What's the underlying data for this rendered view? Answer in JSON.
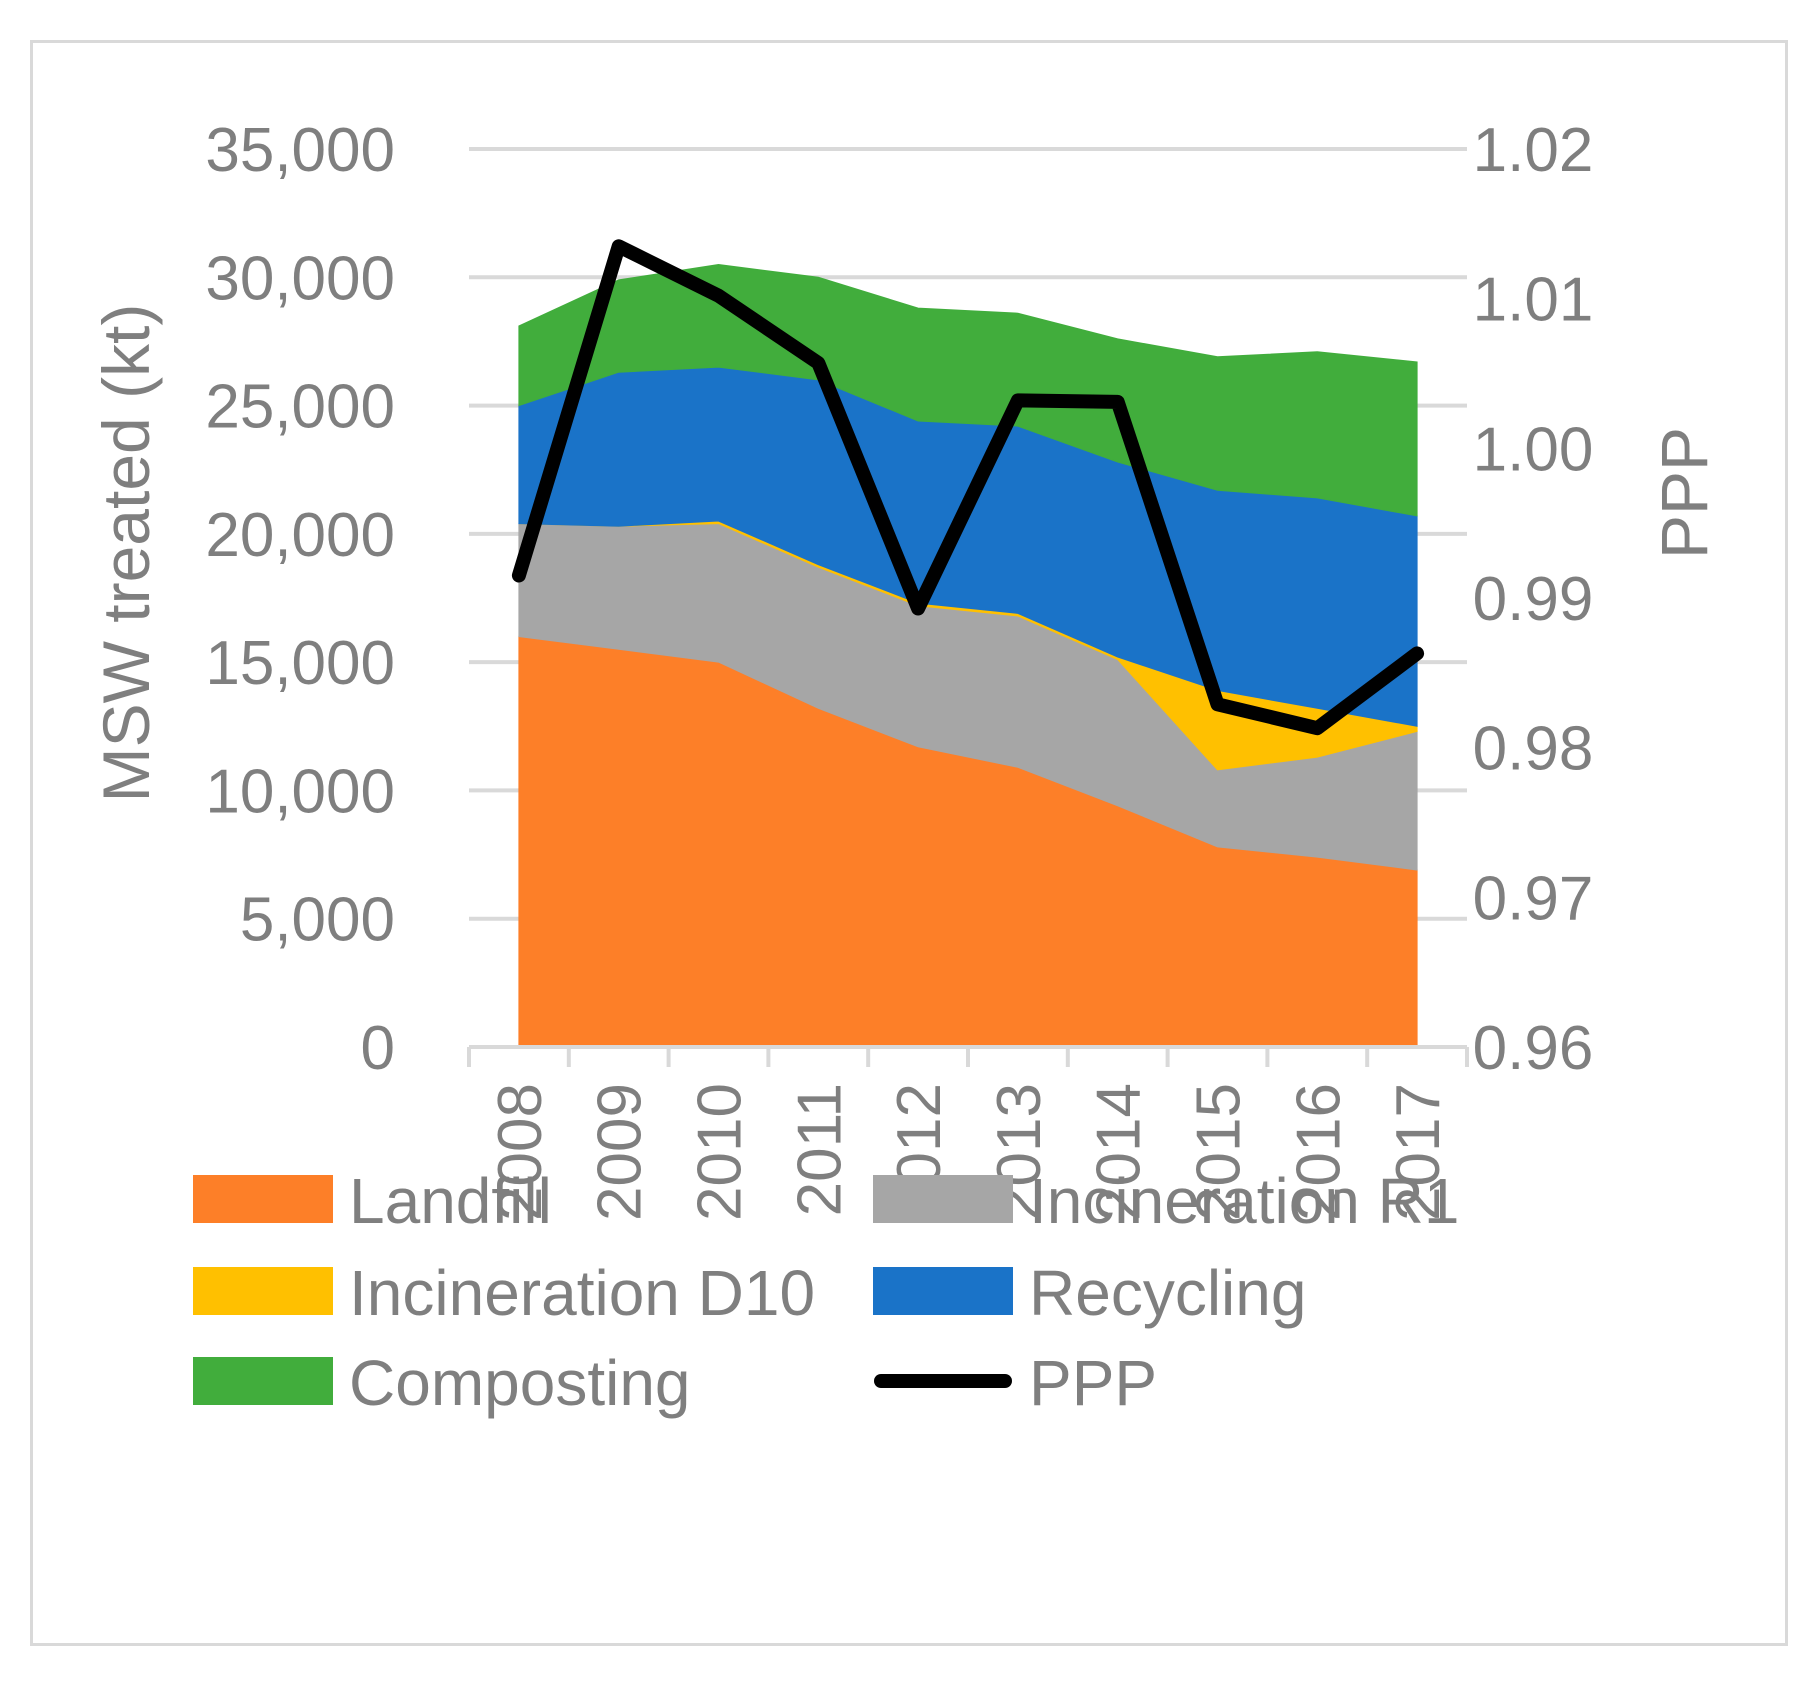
{
  "chart_data": {
    "type": "area",
    "title": "",
    "xlabel": "",
    "ylabel": "MSW treated (kt)",
    "y2label": "PPP",
    "categories": [
      "2008",
      "2009",
      "2010",
      "2011",
      "2012",
      "2013",
      "2014",
      "2015",
      "2016",
      "2017"
    ],
    "ylim": [
      0,
      35000
    ],
    "yticks": [
      "0",
      "5,000",
      "10,000",
      "15,000",
      "20,000",
      "25,000",
      "30,000",
      "35,000"
    ],
    "y2lim": [
      0.96,
      1.02
    ],
    "y2ticks": [
      "0.96",
      "0.97",
      "0.98",
      "0.99",
      "1.00",
      "1.01",
      "1.02"
    ],
    "stacked": true,
    "series": [
      {
        "name": "Landfill",
        "color": "#fd7f28",
        "values": [
          16000,
          15500,
          15000,
          13200,
          11700,
          10900,
          9400,
          7800,
          7400,
          6900
        ]
      },
      {
        "name": "Incineration R1",
        "color": "#a6a6a6",
        "values": [
          4400,
          4800,
          5400,
          5500,
          5500,
          5900,
          5700,
          3000,
          3900,
          5400
        ]
      },
      {
        "name": "Incineration D10",
        "color": "#ffc000",
        "values": [
          0,
          0,
          100,
          100,
          100,
          100,
          100,
          3100,
          1900,
          200
        ]
      },
      {
        "name": "Recycling",
        "color": "#1a73c8",
        "values": [
          4600,
          6000,
          6000,
          7200,
          7100,
          7300,
          7600,
          7800,
          8200,
          8200
        ]
      },
      {
        "name": "Composting",
        "color": "#41ad3c",
        "values": [
          3100,
          3600,
          4000,
          4000,
          4400,
          4400,
          4800,
          5200,
          5700,
          6000
        ]
      }
    ],
    "line_series": {
      "name": "PPP",
      "color": "#000000",
      "axis": "right",
      "values": [
        0.9915,
        1.0135,
        1.0102,
        1.0057,
        0.9893,
        1.0032,
        1.0031,
        0.9829,
        0.9813,
        0.9863
      ]
    },
    "legend": [
      "Landfill",
      "Incineration R1",
      "Incineration D10",
      "Recycling",
      "Composting",
      "PPP"
    ],
    "legend_position": "bottom",
    "grid": true
  }
}
